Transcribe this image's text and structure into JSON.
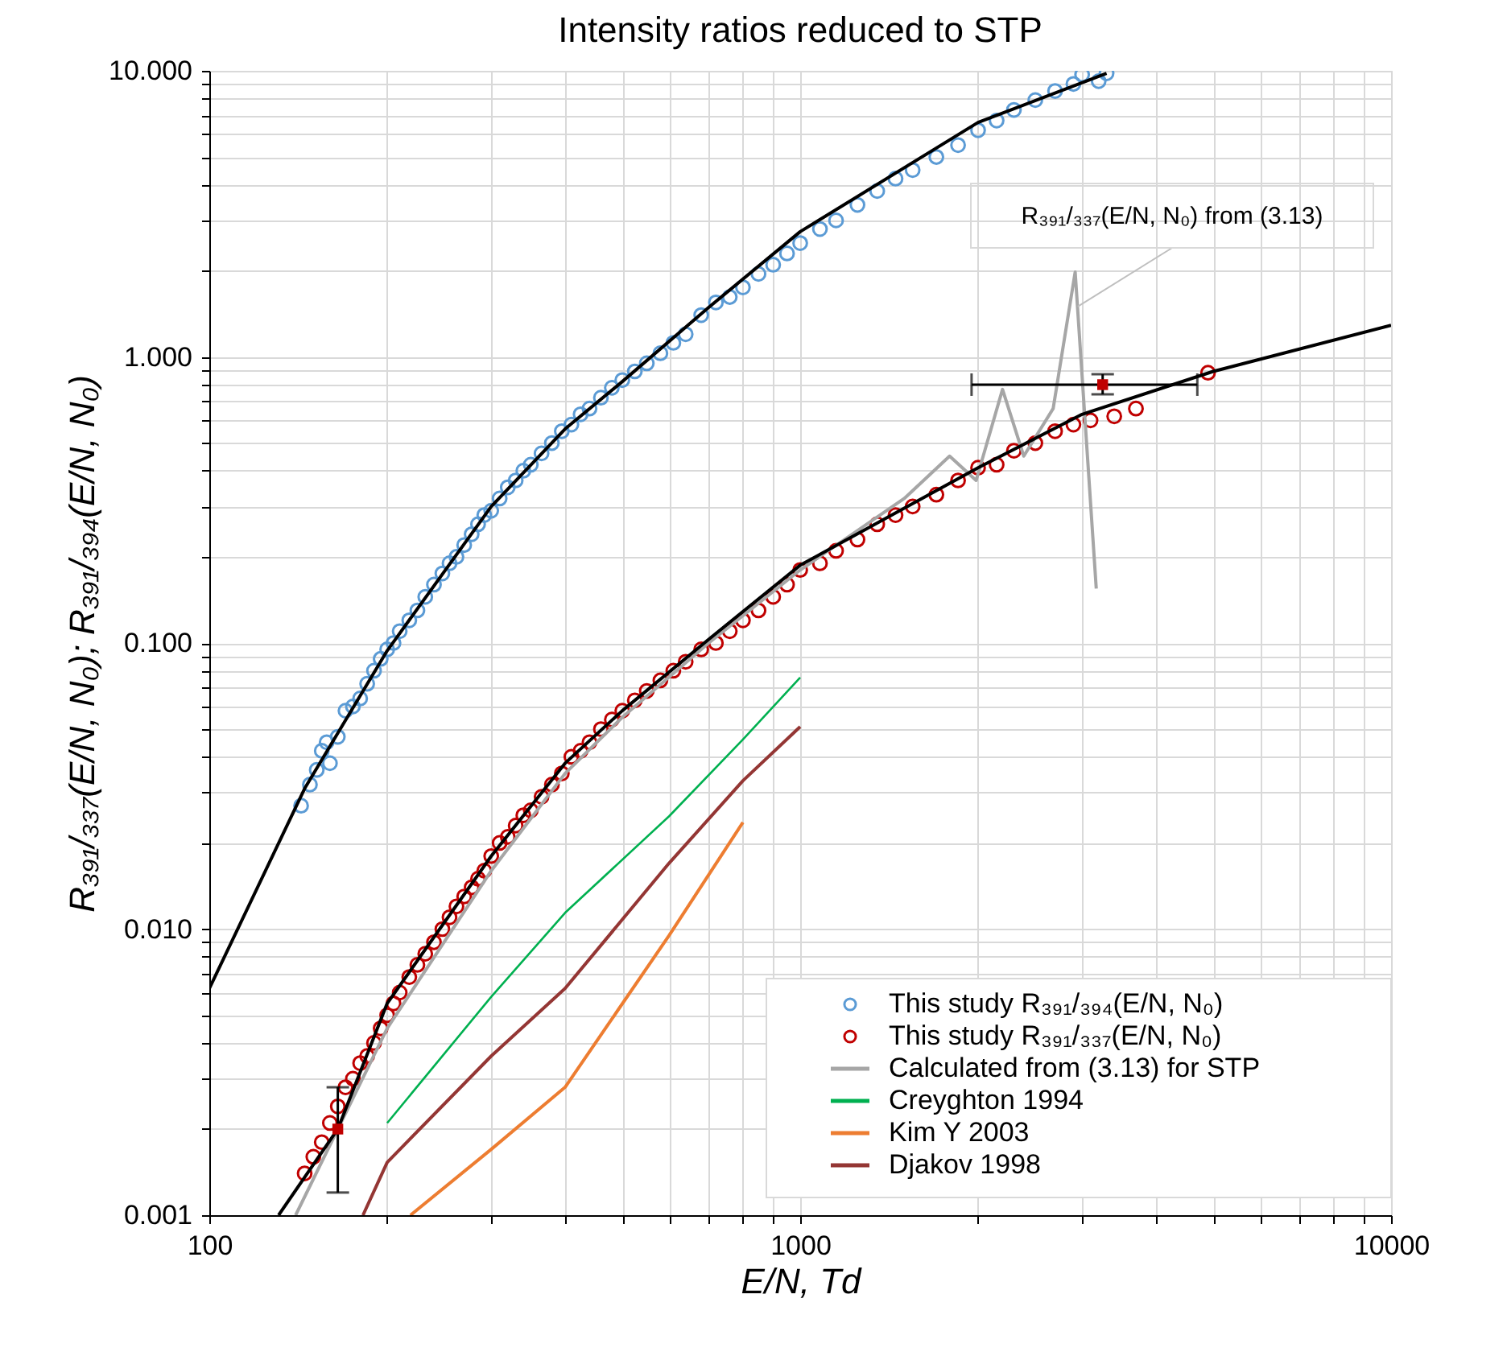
{
  "chart_data": {
    "type": "scatter",
    "title": "Intensity ratios reduced to STP",
    "xlabel": "E/N, Td",
    "ylabel": "R₃₉₁/₃₃₇(E/N, N₀); R₃₉₁/₃₉₄(E/N, N₀)",
    "log": "xy",
    "grid": true,
    "legend": "bottom right",
    "xlim": [
      100,
      10000
    ],
    "ylim": [
      0.001,
      10
    ],
    "xticks": [
      100,
      {
        "value": 200,
        "label": null
      },
      {
        "value": 300,
        "label": null
      },
      {
        "value": 400,
        "label": null
      },
      {
        "value": 500,
        "label": null
      },
      {
        "value": 600,
        "label": null
      },
      {
        "value": 700,
        "label": null
      },
      {
        "value": 800,
        "label": null
      },
      {
        "value": 900,
        "label": null
      },
      1000,
      {
        "value": 2000,
        "label": null
      },
      {
        "value": 3000,
        "label": null
      },
      {
        "value": 4000,
        "label": null
      },
      {
        "value": 5000,
        "label": null
      },
      {
        "value": 6000,
        "label": null
      },
      {
        "value": 7000,
        "label": null
      },
      {
        "value": 8000,
        "label": null
      },
      {
        "value": 9000,
        "label": null
      },
      10000
    ],
    "yticks": [
      {
        "value": 0.001,
        "label": "0.001"
      },
      {
        "value": 0.002,
        "label": null
      },
      {
        "value": 0.003,
        "label": null
      },
      {
        "value": 0.004,
        "label": null
      },
      {
        "value": 0.005,
        "label": null
      },
      {
        "value": 0.006,
        "label": null
      },
      {
        "value": 0.007,
        "label": null
      },
      {
        "value": 0.008,
        "label": null
      },
      {
        "value": 0.009,
        "label": null
      },
      {
        "value": 0.01,
        "label": "0.010"
      },
      {
        "value": 0.02,
        "label": null
      },
      {
        "value": 0.03,
        "label": null
      },
      {
        "value": 0.04,
        "label": null
      },
      {
        "value": 0.05,
        "label": null
      },
      {
        "value": 0.06,
        "label": null
      },
      {
        "value": 0.07,
        "label": null
      },
      {
        "value": 0.08,
        "label": null
      },
      {
        "value": 0.09,
        "label": null
      },
      {
        "value": 0.1,
        "label": "0.100"
      },
      {
        "value": 0.2,
        "label": null
      },
      {
        "value": 0.3,
        "label": null
      },
      {
        "value": 0.4,
        "label": null
      },
      {
        "value": 0.5,
        "label": null
      },
      {
        "value": 0.6,
        "label": null
      },
      {
        "value": 0.7,
        "label": null
      },
      {
        "value": 0.8,
        "label": null
      },
      {
        "value": 0.9,
        "label": null
      },
      {
        "value": 1,
        "label": "1.000"
      },
      {
        "value": 2,
        "label": null
      },
      {
        "value": 3,
        "label": null
      },
      {
        "value": 4,
        "label": null
      },
      {
        "value": 5,
        "label": null
      },
      {
        "value": 6,
        "label": null
      },
      {
        "value": 7,
        "label": null
      },
      {
        "value": 8,
        "label": null
      },
      {
        "value": 9,
        "label": null
      },
      {
        "value": 10,
        "label": "10.000"
      }
    ],
    "annotations": [
      {
        "text": "R₃₉₁/₃₃₇(E/N, N₀) from (3.13)",
        "x": 2950,
        "y": 1.5
      }
    ],
    "series": [
      {
        "name": "This study R₃₉₁/₃₉₄(E/N, N₀)",
        "marker": "circle",
        "color": "#5b9bd5",
        "x": [
          143,
          148,
          152,
          155,
          158,
          160,
          165,
          170,
          175,
          180,
          185,
          190,
          195,
          200,
          205,
          210,
          218,
          225,
          232,
          240,
          248,
          255,
          262,
          270,
          278,
          285,
          292,
          300,
          310,
          320,
          330,
          340,
          350,
          365,
          380,
          395,
          410,
          425,
          440,
          460,
          480,
          500,
          525,
          550,
          580,
          610,
          640,
          680,
          720,
          760,
          800,
          850,
          900,
          950,
          1000,
          1080,
          1150,
          1250,
          1350,
          1450,
          1550,
          1700,
          1850,
          2000,
          2150,
          2300,
          2500,
          2700,
          2900,
          3000,
          3200,
          3300
        ],
        "values": [
          0.027,
          0.032,
          0.036,
          0.042,
          0.045,
          0.038,
          0.047,
          0.058,
          0.06,
          0.064,
          0.072,
          0.08,
          0.088,
          0.095,
          0.1,
          0.11,
          0.12,
          0.13,
          0.145,
          0.16,
          0.175,
          0.19,
          0.2,
          0.22,
          0.24,
          0.26,
          0.28,
          0.29,
          0.32,
          0.35,
          0.37,
          0.4,
          0.42,
          0.46,
          0.5,
          0.55,
          0.58,
          0.63,
          0.66,
          0.72,
          0.78,
          0.83,
          0.89,
          0.95,
          1.03,
          1.12,
          1.2,
          1.4,
          1.55,
          1.62,
          1.75,
          1.95,
          2.1,
          2.3,
          2.5,
          2.8,
          3.0,
          3.4,
          3.8,
          4.2,
          4.5,
          5.0,
          5.5,
          6.2,
          6.7,
          7.3,
          7.9,
          8.5,
          9.0,
          9.7,
          9.2,
          9.8
        ]
      },
      {
        "name": "This study R₃₉₁/₃₃₇(E/N, N₀)",
        "marker": "circle",
        "color": "#c00000",
        "x": [
          145,
          150,
          155,
          160,
          165,
          170,
          175,
          180,
          185,
          190,
          195,
          200,
          205,
          210,
          218,
          225,
          232,
          240,
          248,
          255,
          262,
          270,
          278,
          285,
          292,
          300,
          310,
          320,
          330,
          340,
          350,
          365,
          380,
          395,
          410,
          425,
          440,
          460,
          480,
          500,
          525,
          550,
          580,
          610,
          640,
          680,
          720,
          760,
          800,
          850,
          900,
          950,
          1000,
          1080,
          1150,
          1250,
          1350,
          1450,
          1550,
          1700,
          1850,
          2000,
          2150,
          2300,
          2500,
          2700,
          2900,
          3100,
          3400,
          3700,
          4900
        ],
        "values": [
          0.0014,
          0.0016,
          0.0018,
          0.0021,
          0.0024,
          0.0028,
          0.003,
          0.0034,
          0.0036,
          0.004,
          0.0045,
          0.005,
          0.0055,
          0.006,
          0.0068,
          0.0075,
          0.0082,
          0.009,
          0.01,
          0.011,
          0.012,
          0.013,
          0.014,
          0.015,
          0.016,
          0.018,
          0.02,
          0.021,
          0.023,
          0.025,
          0.026,
          0.029,
          0.032,
          0.035,
          0.04,
          0.042,
          0.045,
          0.05,
          0.054,
          0.058,
          0.063,
          0.068,
          0.074,
          0.08,
          0.086,
          0.095,
          0.1,
          0.11,
          0.12,
          0.13,
          0.145,
          0.16,
          0.18,
          0.19,
          0.21,
          0.23,
          0.26,
          0.28,
          0.3,
          0.33,
          0.37,
          0.41,
          0.42,
          0.47,
          0.5,
          0.55,
          0.58,
          0.6,
          0.62,
          0.66,
          0.88
        ]
      },
      {
        "name": "Calculated from (3.13) for STP",
        "type": "line",
        "color": "#a6a6a6",
        "x": [
          140,
          200,
          300,
          400,
          500,
          700,
          1000,
          1500,
          1790,
          1985,
          2200,
          2390,
          2680,
          2920,
          3170
        ],
        "values": [
          0.001,
          0.0045,
          0.016,
          0.035,
          0.055,
          0.1,
          0.18,
          0.32,
          0.45,
          0.37,
          0.77,
          0.45,
          0.66,
          1.98,
          0.155
        ]
      },
      {
        "name": "Creyghton 1994",
        "type": "line",
        "color": "#00b050",
        "x": [
          200,
          300,
          400,
          600,
          800,
          1000
        ],
        "values": [
          0.0021,
          0.0058,
          0.0114,
          0.0248,
          0.046,
          0.0757
        ]
      },
      {
        "name": "Kim Y  2003",
        "type": "line",
        "color": "#ed7d31",
        "x": [
          219,
          300,
          400,
          600,
          800
        ],
        "values": [
          0.001,
          0.0017,
          0.0028,
          0.0095,
          0.0236
        ]
      },
      {
        "name": "Djakov 1998",
        "type": "line",
        "color": "#943634",
        "x": [
          182,
          200,
          300,
          400,
          600,
          800,
          1000
        ],
        "values": [
          0.001,
          0.00153,
          0.0036,
          0.0062,
          0.017,
          0.033,
          0.051
        ]
      },
      {
        "type": "line",
        "color": "#000000",
        "x": [
          100,
          145,
          200,
          300,
          400,
          500,
          700,
          1000,
          2000,
          3300
        ],
        "values": [
          0.0062,
          0.031,
          0.094,
          0.3,
          0.56,
          0.82,
          1.49,
          2.74,
          6.6,
          9.8
        ]
      },
      {
        "type": "line",
        "color": "#000000",
        "x": [
          131,
          165,
          200,
          300,
          400,
          500,
          700,
          1000,
          2000,
          3000,
          5000,
          10000
        ],
        "values": [
          0.001,
          0.002,
          0.0055,
          0.018,
          0.038,
          0.058,
          0.103,
          0.187,
          0.41,
          0.63,
          0.89,
          1.29
        ]
      },
      {
        "marker": "square",
        "color": "#c00000",
        "x": [
          165,
          3250
        ],
        "values": [
          0.002,
          0.8
        ],
        "errors": [
          [
            0.0012,
            0.0028
          ],
          [
            0.74,
            0.87
          ]
        ],
        "xerrors": [
          null,
          [
            1950,
            4700
          ]
        ]
      }
    ]
  }
}
